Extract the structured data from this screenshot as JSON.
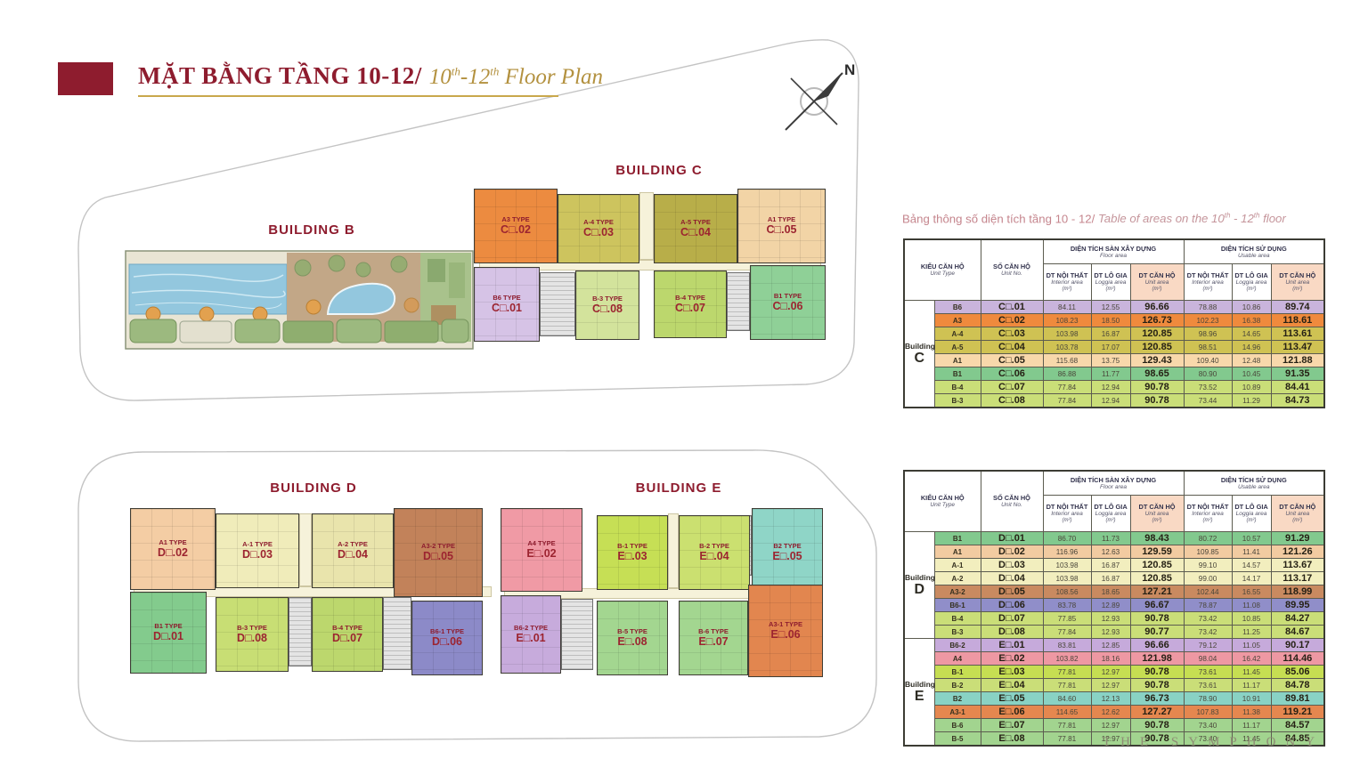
{
  "title": {
    "vn": "MẶT BẰNG TẦNG 10-12/",
    "en_pre": "10",
    "sup_a": "th",
    "en_mid": "-12",
    "sup_b": "th",
    "en_post": " Floor Plan"
  },
  "compass": {
    "label": "N"
  },
  "brand": "THE SYMPHONY",
  "caption": {
    "vn": "Bảng thông số diện tích tầng 10 - 12/ ",
    "en_pre": "Table of areas on the 10",
    "sup_a": "th",
    "en_mid": " - 12",
    "sup_b": "th",
    "en_post": " floor"
  },
  "headers": {
    "unit_type_vn": "KIỂU CĂN HỘ",
    "unit_type_en": "Unit Type",
    "unit_no_vn": "SỐ CĂN HỘ",
    "unit_no_en": "Unit No.",
    "floor_group_vn": "DIỆN TÍCH SÀN XÂY DỰNG",
    "floor_group_en": "Floor area",
    "usable_group_vn": "DIỆN TÍCH SỬ DỤNG",
    "usable_group_en": "Usable area",
    "interior_vn": "DT NỘI THẤT",
    "interior_en": "Interior area",
    "loggia_vn": "DT LÔ GIA",
    "loggia_en": "Loggia area",
    "unit_area_vn": "DT CĂN HỘ",
    "unit_area_en": "Unit area",
    "sqm": "(m²)"
  },
  "area_tables": [
    {
      "groups": [
        {
          "word": "Building",
          "letter": "C",
          "rows": [
            {
              "unit_type": "B6",
              "unit_no": "C□.01",
              "floor_interior": "84.11",
              "floor_loggia": "12.55",
              "floor_unit": "96.66",
              "usable_interior": "78.88",
              "usable_loggia": "10.86",
              "usable_unit": "89.74",
              "row_color": "#c9b4dc"
            },
            {
              "unit_type": "A3",
              "unit_no": "C□.02",
              "floor_interior": "108.23",
              "floor_loggia": "18.50",
              "floor_unit": "126.73",
              "usable_interior": "102.23",
              "usable_loggia": "16.38",
              "usable_unit": "118.61",
              "row_color": "#ef8a3d"
            },
            {
              "unit_type": "A-4",
              "unit_no": "C□.03",
              "floor_interior": "103.98",
              "floor_loggia": "16.87",
              "floor_unit": "120.85",
              "usable_interior": "98.96",
              "usable_loggia": "14.65",
              "usable_unit": "113.61",
              "row_color": "#cfc253"
            },
            {
              "unit_type": "A-5",
              "unit_no": "C□.04",
              "floor_interior": "103.78",
              "floor_loggia": "17.07",
              "floor_unit": "120.85",
              "usable_interior": "98.51",
              "usable_loggia": "14.96",
              "usable_unit": "113.47",
              "row_color": "#cfc253"
            },
            {
              "unit_type": "A1",
              "unit_no": "C□.05",
              "floor_interior": "115.68",
              "floor_loggia": "13.75",
              "floor_unit": "129.43",
              "usable_interior": "109.40",
              "usable_loggia": "12.48",
              "usable_unit": "121.88",
              "row_color": "#f8d8ab"
            },
            {
              "unit_type": "B1",
              "unit_no": "C□.06",
              "floor_interior": "86.88",
              "floor_loggia": "11.77",
              "floor_unit": "98.65",
              "usable_interior": "80.90",
              "usable_loggia": "10.45",
              "usable_unit": "91.35",
              "row_color": "#82c98e"
            },
            {
              "unit_type": "B-4",
              "unit_no": "C□.07",
              "floor_interior": "77.84",
              "floor_loggia": "12.94",
              "floor_unit": "90.78",
              "usable_interior": "73.52",
              "usable_loggia": "10.89",
              "usable_unit": "84.41",
              "row_color": "#cade78"
            },
            {
              "unit_type": "B-3",
              "unit_no": "C□.08",
              "floor_interior": "77.84",
              "floor_loggia": "12.94",
              "floor_unit": "90.78",
              "usable_interior": "73.44",
              "usable_loggia": "11.29",
              "usable_unit": "84.73",
              "row_color": "#cade78"
            }
          ]
        }
      ]
    },
    {
      "groups": [
        {
          "word": "Building",
          "letter": "D",
          "rows": [
            {
              "unit_type": "B1",
              "unit_no": "D□.01",
              "floor_interior": "86.70",
              "floor_loggia": "11.73",
              "floor_unit": "98.43",
              "usable_interior": "80.72",
              "usable_loggia": "10.57",
              "usable_unit": "91.29",
              "row_color": "#82c98e"
            },
            {
              "unit_type": "A1",
              "unit_no": "D□.02",
              "floor_interior": "116.96",
              "floor_loggia": "12.63",
              "floor_unit": "129.59",
              "usable_interior": "109.85",
              "usable_loggia": "11.41",
              "usable_unit": "121.26",
              "row_color": "#f2cba1"
            },
            {
              "unit_type": "A-1",
              "unit_no": "D□.03",
              "floor_interior": "103.98",
              "floor_loggia": "16.87",
              "floor_unit": "120.85",
              "usable_interior": "99.10",
              "usable_loggia": "14.57",
              "usable_unit": "113.67",
              "row_color": "#f2eebe"
            },
            {
              "unit_type": "A-2",
              "unit_no": "D□.04",
              "floor_interior": "103.98",
              "floor_loggia": "16.87",
              "floor_unit": "120.85",
              "usable_interior": "99.00",
              "usable_loggia": "14.17",
              "usable_unit": "113.17",
              "row_color": "#f2eebe"
            },
            {
              "unit_type": "A3-2",
              "unit_no": "D□.05",
              "floor_interior": "108.56",
              "floor_loggia": "18.65",
              "floor_unit": "127.21",
              "usable_interior": "102.44",
              "usable_loggia": "16.55",
              "usable_unit": "118.99",
              "row_color": "#c98a60"
            },
            {
              "unit_type": "B6-1",
              "unit_no": "D□.06",
              "floor_interior": "83.78",
              "floor_loggia": "12.89",
              "floor_unit": "96.67",
              "usable_interior": "78.87",
              "usable_loggia": "11.08",
              "usable_unit": "89.95",
              "row_color": "#908ec9"
            },
            {
              "unit_type": "B-4",
              "unit_no": "D□.07",
              "floor_interior": "77.85",
              "floor_loggia": "12.93",
              "floor_unit": "90.78",
              "usable_interior": "73.42",
              "usable_loggia": "10.85",
              "usable_unit": "84.27",
              "row_color": "#cade78"
            },
            {
              "unit_type": "B-3",
              "unit_no": "D□.08",
              "floor_interior": "77.84",
              "floor_loggia": "12.93",
              "floor_unit": "90.77",
              "usable_interior": "73.42",
              "usable_loggia": "11.25",
              "usable_unit": "84.67",
              "row_color": "#cade78"
            }
          ]
        },
        {
          "word": "Building",
          "letter": "E",
          "rows": [
            {
              "unit_type": "B6-2",
              "unit_no": "E□.01",
              "floor_interior": "83.81",
              "floor_loggia": "12.85",
              "floor_unit": "96.66",
              "usable_interior": "79.12",
              "usable_loggia": "11.05",
              "usable_unit": "90.17",
              "row_color": "#c6aadb"
            },
            {
              "unit_type": "A4",
              "unit_no": "E□.02",
              "floor_interior": "103.82",
              "floor_loggia": "18.16",
              "floor_unit": "121.98",
              "usable_interior": "98.04",
              "usable_loggia": "16.42",
              "usable_unit": "114.46",
              "row_color": "#ee98a3"
            },
            {
              "unit_type": "B-1",
              "unit_no": "E□.03",
              "floor_interior": "77.81",
              "floor_loggia": "12.97",
              "floor_unit": "90.78",
              "usable_interior": "73.61",
              "usable_loggia": "11.45",
              "usable_unit": "85.06",
              "row_color": "#c6de52"
            },
            {
              "unit_type": "B-2",
              "unit_no": "E□.04",
              "floor_interior": "77.81",
              "floor_loggia": "12.97",
              "floor_unit": "90.78",
              "usable_interior": "73.61",
              "usable_loggia": "11.17",
              "usable_unit": "84.78",
              "row_color": "#cade78"
            },
            {
              "unit_type": "B2",
              "unit_no": "E□.05",
              "floor_interior": "84.60",
              "floor_loggia": "12.13",
              "floor_unit": "96.73",
              "usable_interior": "78.90",
              "usable_loggia": "10.91",
              "usable_unit": "89.81",
              "row_color": "#89d2c4"
            },
            {
              "unit_type": "A3-1",
              "unit_no": "E□.06",
              "floor_interior": "114.65",
              "floor_loggia": "12.62",
              "floor_unit": "127.27",
              "usable_interior": "107.83",
              "usable_loggia": "11.38",
              "usable_unit": "119.21",
              "row_color": "#e5874f"
            },
            {
              "unit_type": "B-6",
              "unit_no": "E□.07",
              "floor_interior": "77.81",
              "floor_loggia": "12.97",
              "floor_unit": "90.78",
              "usable_interior": "73.40",
              "usable_loggia": "11.17",
              "usable_unit": "84.57",
              "row_color": "#a2d48f"
            },
            {
              "unit_type": "B-5",
              "unit_no": "E□.08",
              "floor_interior": "77.81",
              "floor_loggia": "12.97",
              "floor_unit": "90.78",
              "usable_interior": "73.40",
              "usable_loggia": "11.45",
              "usable_unit": "84.85",
              "row_color": "#a2d48f"
            }
          ]
        }
      ]
    }
  ],
  "plans": {
    "b": {
      "label": "BUILDING B"
    },
    "c": {
      "label": "BUILDING C",
      "units": [
        {
          "type": "A3 TYPE",
          "no": "C□.02",
          "color": "#ec8b40"
        },
        {
          "type": "A-4 TYPE",
          "no": "C□.03",
          "color": "#cdc45e"
        },
        {
          "type": "A-5 TYPE",
          "no": "C□.04",
          "color": "#b8ae49"
        },
        {
          "type": "A1 TYPE",
          "no": "C□.05",
          "color": "#f2d4a6"
        },
        {
          "type": "B6 TYPE",
          "no": "C□.01",
          "color": "#d6c3e6"
        },
        {
          "type": "B-3 TYPE",
          "no": "C□.08",
          "color": "#d3e39c"
        },
        {
          "type": "B-4 TYPE",
          "no": "C□.07",
          "color": "#bcd76d"
        },
        {
          "type": "B1 TYPE",
          "no": "C□.06",
          "color": "#8fd097"
        }
      ]
    },
    "d": {
      "label": "BUILDING D",
      "units": [
        {
          "type": "A1 TYPE",
          "no": "D□.02",
          "color": "#f4cda4"
        },
        {
          "type": "A-1 TYPE",
          "no": "D□.03",
          "color": "#f0ecba"
        },
        {
          "type": "A-2 TYPE",
          "no": "D□.04",
          "color": "#e9e4ac"
        },
        {
          "type": "A3-2 TYPE",
          "no": "D□.05",
          "color": "#c2825a"
        },
        {
          "type": "B1 TYPE",
          "no": "D□.01",
          "color": "#83cb8d"
        },
        {
          "type": "B-3 TYPE",
          "no": "D□.08",
          "color": "#c8de74"
        },
        {
          "type": "B-4 TYPE",
          "no": "D□.07",
          "color": "#bcd76d"
        },
        {
          "type": "B6-1 TYPE",
          "no": "D□.06",
          "color": "#8c8ac8"
        }
      ]
    },
    "e": {
      "label": "BUILDING E",
      "units": [
        {
          "type": "A4 TYPE",
          "no": "E□.02",
          "color": "#f09aa5"
        },
        {
          "type": "B-1 TYPE",
          "no": "E□.03",
          "color": "#c6df55"
        },
        {
          "type": "B-2 TYPE",
          "no": "E□.04",
          "color": "#cbe070"
        },
        {
          "type": "B2 TYPE",
          "no": "E□.05",
          "color": "#8fd5c7"
        },
        {
          "type": "B6-2 TYPE",
          "no": "E□.01",
          "color": "#c7abdc"
        },
        {
          "type": "B-5 TYPE",
          "no": "E□.08",
          "color": "#a3d690"
        },
        {
          "type": "B-6 TYPE",
          "no": "E□.07",
          "color": "#a3d690"
        },
        {
          "type": "A3-1 TYPE",
          "no": "E□.06",
          "color": "#e2864f"
        }
      ]
    }
  }
}
